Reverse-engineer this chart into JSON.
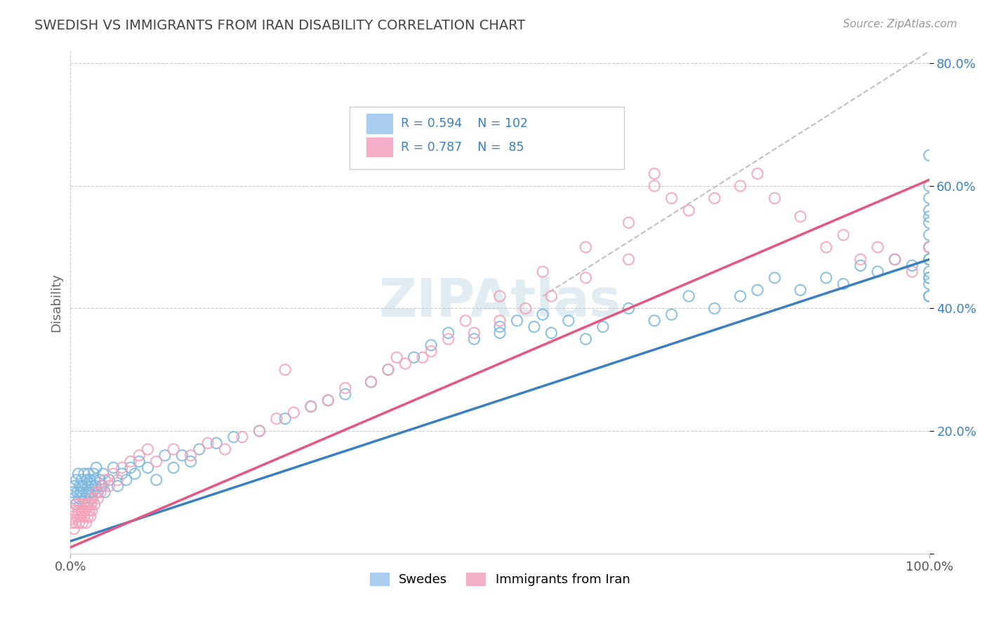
{
  "title": "SWEDISH VS IMMIGRANTS FROM IRAN DISABILITY CORRELATION CHART",
  "source": "Source: ZipAtlas.com",
  "ylabel": "Disability",
  "legend_label_blue": "Swedes",
  "legend_label_pink": "Immigrants from Iran",
  "blue_color": "#7ab8e0",
  "pink_color": "#f4a0b8",
  "blue_line_color": "#3a80c0",
  "pink_line_color": "#e85580",
  "dashed_line_color": "#c0c0c0",
  "text_color": "#3a80c0",
  "watermark_color": "#d8e8f0",
  "xlim": [
    0,
    100
  ],
  "ylim": [
    0,
    82
  ],
  "blue_slope": 0.46,
  "blue_intercept": 2.0,
  "pink_slope": 0.6,
  "pink_intercept": 1.0,
  "dash_x0": 55,
  "dash_y0": 42,
  "dash_x1": 100,
  "dash_y1": 82,
  "blue_x": [
    0.3,
    0.4,
    0.5,
    0.6,
    0.7,
    0.8,
    0.9,
    1.0,
    1.1,
    1.2,
    1.3,
    1.4,
    1.5,
    1.6,
    1.7,
    1.8,
    1.9,
    2.0,
    2.1,
    2.2,
    2.3,
    2.4,
    2.5,
    2.6,
    2.7,
    2.8,
    2.9,
    3.0,
    3.2,
    3.4,
    3.6,
    3.8,
    4.0,
    4.5,
    5.0,
    5.5,
    6.0,
    6.5,
    7.0,
    7.5,
    8.0,
    9.0,
    10.0,
    11.0,
    12.0,
    13.0,
    14.0,
    15.0,
    17.0,
    19.0,
    22.0,
    25.0,
    28.0,
    30.0,
    32.0,
    35.0,
    37.0,
    40.0,
    42.0,
    44.0,
    47.0,
    50.0,
    50.0,
    52.0,
    54.0,
    55.0,
    56.0,
    58.0,
    60.0,
    62.0,
    65.0,
    68.0,
    70.0,
    72.0,
    75.0,
    78.0,
    80.0,
    82.0,
    85.0,
    88.0,
    90.0,
    92.0,
    94.0,
    96.0,
    98.0,
    100.0,
    100.0,
    100.0,
    100.0,
    100.0,
    100.0,
    100.0,
    100.0,
    100.0,
    100.0,
    100.0,
    100.0,
    100.0,
    100.0,
    100.0,
    100.0,
    100.0
  ],
  "blue_y": [
    10,
    9,
    11,
    8,
    12,
    10,
    13,
    9,
    11,
    10,
    12,
    11,
    8,
    13,
    9,
    10,
    12,
    11,
    13,
    10,
    12,
    9,
    11,
    10,
    13,
    12,
    11,
    14,
    10,
    12,
    11,
    13,
    10,
    12,
    14,
    11,
    13,
    12,
    14,
    13,
    15,
    14,
    12,
    16,
    14,
    16,
    15,
    17,
    18,
    19,
    20,
    22,
    24,
    25,
    26,
    28,
    30,
    32,
    34,
    36,
    35,
    37,
    36,
    38,
    37,
    39,
    36,
    38,
    35,
    37,
    40,
    38,
    39,
    42,
    40,
    42,
    43,
    45,
    43,
    45,
    44,
    47,
    46,
    48,
    47,
    50,
    45,
    42,
    44,
    42,
    48,
    45,
    50,
    48,
    46,
    52,
    55,
    58,
    56,
    54,
    60,
    65
  ],
  "pink_x": [
    0.2,
    0.3,
    0.4,
    0.5,
    0.6,
    0.7,
    0.8,
    0.9,
    1.0,
    1.1,
    1.2,
    1.3,
    1.4,
    1.5,
    1.6,
    1.7,
    1.8,
    1.9,
    2.0,
    2.1,
    2.2,
    2.3,
    2.4,
    2.5,
    2.6,
    2.8,
    3.0,
    3.2,
    3.5,
    3.8,
    4.0,
    4.5,
    5.0,
    5.5,
    6.0,
    7.0,
    8.0,
    9.0,
    10.0,
    12.0,
    14.0,
    16.0,
    18.0,
    20.0,
    22.0,
    24.0,
    26.0,
    28.0,
    30.0,
    32.0,
    35.0,
    37.0,
    39.0,
    41.0,
    44.0,
    47.0,
    50.0,
    53.0,
    56.0,
    60.0,
    65.0,
    68.0,
    25.0,
    38.0,
    42.0,
    46.0,
    50.0,
    55.0,
    60.0,
    65.0,
    68.0,
    70.0,
    72.0,
    75.0,
    78.0,
    80.0,
    82.0,
    85.0,
    88.0,
    90.0,
    92.0,
    94.0,
    96.0,
    98.0,
    100.0
  ],
  "pink_y": [
    5,
    6,
    4,
    7,
    5,
    8,
    6,
    7,
    5,
    8,
    6,
    7,
    5,
    8,
    6,
    7,
    5,
    8,
    6,
    8,
    7,
    6,
    8,
    7,
    9,
    8,
    10,
    9,
    10,
    11,
    12,
    11,
    13,
    12,
    14,
    15,
    16,
    17,
    15,
    17,
    16,
    18,
    17,
    19,
    20,
    22,
    23,
    24,
    25,
    27,
    28,
    30,
    31,
    32,
    35,
    36,
    38,
    40,
    42,
    45,
    48,
    62,
    30,
    32,
    33,
    38,
    42,
    46,
    50,
    54,
    60,
    58,
    56,
    58,
    60,
    62,
    58,
    55,
    50,
    52,
    48,
    50,
    48,
    46,
    50
  ]
}
